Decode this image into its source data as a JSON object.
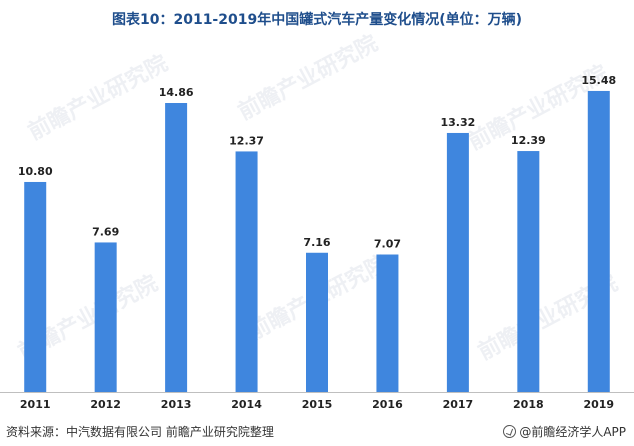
{
  "title": "图表10：2011-2019年中国罐式汽车产量变化情况(单位：万辆)",
  "source": "资料来源：中汽数据有限公司 前瞻产业研究院整理",
  "brand": "@前瞻经济学人APP",
  "watermark": "前瞻产业研究院",
  "colors": {
    "bar": "#3f86de",
    "label": "#222222",
    "axis": "#bfbfbf"
  },
  "chart_data": {
    "type": "bar",
    "title": "图表10：2011-2019年中国罐式汽车产量变化情况(单位：万辆)",
    "categories": [
      "2011",
      "2012",
      "2013",
      "2014",
      "2015",
      "2016",
      "2017",
      "2018",
      "2019"
    ],
    "values": [
      10.8,
      7.69,
      14.86,
      12.37,
      7.16,
      7.07,
      13.32,
      12.39,
      15.48
    ],
    "value_labels": [
      "10.80",
      "7.69",
      "14.86",
      "12.37",
      "7.16",
      "7.07",
      "13.32",
      "12.39",
      "15.48"
    ],
    "xlabel": "",
    "ylabel": "",
    "ylim": [
      0,
      18.1
    ],
    "grid": false,
    "legend": "none"
  }
}
